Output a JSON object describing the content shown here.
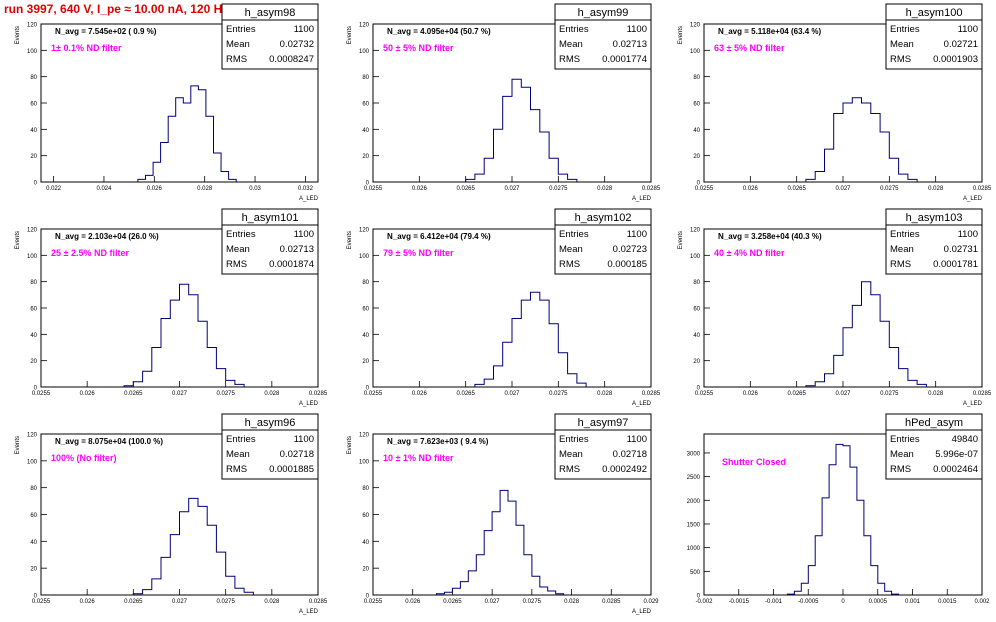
{
  "run_title": "run 3997,   640 V, I_pe ≈ 10.00 nA, 120 Hz",
  "colors": {
    "title": "#e00000",
    "annotation": "#ff00ff",
    "histogram": "#00007a",
    "axis": "#000000"
  },
  "chart_data": [
    {
      "type": "histogram",
      "name": "h_asym98",
      "navg": "N_avg = 7.545e+02 ( 0.9 %)",
      "filter": "1± 0.1% ND filter",
      "stats": {
        "entries_label": "Entries",
        "entries": "1100",
        "mean_label": "Mean",
        "mean": "0.02732",
        "rms_label": "RMS",
        "rms": "0.0008247"
      },
      "ylabel": "Events",
      "xlabel": "A_LED",
      "xlim": [
        0.0215,
        0.0325
      ],
      "ylim": [
        0,
        120
      ],
      "xticks": [
        "0.022",
        "0.024",
        "0.026",
        "0.028",
        "0.03",
        "0.032"
      ],
      "xtick_values": [
        0.022,
        0.024,
        0.026,
        0.028,
        0.03,
        0.032
      ],
      "yticks": [
        "0",
        "20",
        "40",
        "60",
        "80",
        "100",
        "120"
      ],
      "ytick_values": [
        0,
        20,
        40,
        60,
        80,
        100,
        120
      ],
      "centers": [
        0.0255,
        0.0258,
        0.0261,
        0.0264,
        0.0267,
        0.027,
        0.0273,
        0.0276,
        0.0279,
        0.0282,
        0.0285,
        0.0288,
        0.0291
      ],
      "values": [
        2,
        5,
        15,
        30,
        50,
        64,
        60,
        73,
        70,
        50,
        22,
        8,
        2
      ]
    },
    {
      "type": "histogram",
      "name": "h_asym99",
      "navg": "N_avg = 4.095e+04 (50.7 %)",
      "filter": "50 ± 5% ND filter",
      "stats": {
        "entries_label": "Entries",
        "entries": "1100",
        "mean_label": "Mean",
        "mean": "0.02713",
        "rms_label": "RMS",
        "rms": "0.0001774"
      },
      "ylabel": "Events",
      "xlabel": "A_LED",
      "xlim": [
        0.0255,
        0.0285
      ],
      "ylim": [
        0,
        120
      ],
      "xticks": [
        "0.0255",
        "0.026",
        "0.0265",
        "0.027",
        "0.0275",
        "0.028",
        "0.0285"
      ],
      "xtick_values": [
        0.0255,
        0.026,
        0.0265,
        0.027,
        0.0275,
        0.028,
        0.0285
      ],
      "yticks": [
        "0",
        "20",
        "40",
        "60",
        "80",
        "100",
        "120"
      ],
      "ytick_values": [
        0,
        20,
        40,
        60,
        80,
        100,
        120
      ],
      "centers": [
        0.02655,
        0.02665,
        0.02675,
        0.02685,
        0.02695,
        0.02705,
        0.02715,
        0.02725,
        0.02735,
        0.02745,
        0.02755,
        0.02765
      ],
      "values": [
        2,
        6,
        18,
        40,
        65,
        78,
        72,
        55,
        38,
        18,
        6,
        2
      ]
    },
    {
      "type": "histogram",
      "name": "h_asym100",
      "navg": "N_avg = 5.118e+04 (63.4 %)",
      "filter": "63 ± 5% ND filter",
      "stats": {
        "entries_label": "Entries",
        "entries": "1100",
        "mean_label": "Mean",
        "mean": "0.02721",
        "rms_label": "RMS",
        "rms": "0.0001903"
      },
      "ylabel": "Events",
      "xlabel": "A_LED",
      "xlim": [
        0.0255,
        0.0285
      ],
      "ylim": [
        0,
        120
      ],
      "xticks": [
        "0.0255",
        "0.026",
        "0.0265",
        "0.027",
        "0.0275",
        "0.028",
        "0.0285"
      ],
      "xtick_values": [
        0.0255,
        0.026,
        0.0265,
        0.027,
        0.0275,
        0.028,
        0.0285
      ],
      "yticks": [
        "0",
        "20",
        "40",
        "60",
        "80",
        "100",
        "120"
      ],
      "ytick_values": [
        0,
        20,
        40,
        60,
        80,
        100,
        120
      ],
      "centers": [
        0.02665,
        0.02675,
        0.02685,
        0.02695,
        0.02705,
        0.02715,
        0.02725,
        0.02735,
        0.02745,
        0.02755,
        0.02765,
        0.02775
      ],
      "values": [
        2,
        8,
        25,
        52,
        60,
        64,
        60,
        52,
        38,
        18,
        6,
        2
      ]
    },
    {
      "type": "histogram",
      "name": "h_asym101",
      "navg": "N_avg = 2.103e+04 (26.0 %)",
      "filter": "25 ± 2.5% ND filter",
      "stats": {
        "entries_label": "Entries",
        "entries": "1100",
        "mean_label": "Mean",
        "mean": "0.02713",
        "rms_label": "RMS",
        "rms": "0.0001874"
      },
      "ylabel": "Events",
      "xlabel": "A_LED",
      "xlim": [
        0.0255,
        0.0285
      ],
      "ylim": [
        0,
        120
      ],
      "xticks": [
        "0.0255",
        "0.026",
        "0.0265",
        "0.027",
        "0.0275",
        "0.028",
        "0.0285"
      ],
      "xtick_values": [
        0.0255,
        0.026,
        0.0265,
        0.027,
        0.0275,
        0.028,
        0.0285
      ],
      "yticks": [
        "0",
        "20",
        "40",
        "60",
        "80",
        "100",
        "120"
      ],
      "ytick_values": [
        0,
        20,
        40,
        60,
        80,
        100,
        120
      ],
      "centers": [
        0.02645,
        0.02655,
        0.02665,
        0.02675,
        0.02685,
        0.02695,
        0.02705,
        0.02715,
        0.02725,
        0.02735,
        0.02745,
        0.02755,
        0.02765
      ],
      "values": [
        1,
        4,
        12,
        30,
        52,
        66,
        78,
        70,
        50,
        30,
        14,
        5,
        2
      ]
    },
    {
      "type": "histogram",
      "name": "h_asym102",
      "navg": "N_avg = 6.412e+04 (79.4 %)",
      "filter": "79 ± 5% ND filter",
      "stats": {
        "entries_label": "Entries",
        "entries": "1100",
        "mean_label": "Mean",
        "mean": "0.02723",
        "rms_label": "RMS",
        "rms": "0.000185"
      },
      "ylabel": "Events",
      "xlabel": "A_LED",
      "xlim": [
        0.0255,
        0.0285
      ],
      "ylim": [
        0,
        120
      ],
      "xticks": [
        "0.0255",
        "0.026",
        "0.0265",
        "0.027",
        "0.0275",
        "0.028",
        "0.0285"
      ],
      "xtick_values": [
        0.0255,
        0.026,
        0.0265,
        0.027,
        0.0275,
        0.028,
        0.0285
      ],
      "yticks": [
        "0",
        "20",
        "40",
        "60",
        "80",
        "100",
        "120"
      ],
      "ytick_values": [
        0,
        20,
        40,
        60,
        80,
        100,
        120
      ],
      "centers": [
        0.02665,
        0.02675,
        0.02685,
        0.02695,
        0.02705,
        0.02715,
        0.02725,
        0.02735,
        0.02745,
        0.02755,
        0.02765,
        0.02775
      ],
      "values": [
        2,
        6,
        16,
        34,
        52,
        66,
        72,
        66,
        48,
        26,
        10,
        3
      ]
    },
    {
      "type": "histogram",
      "name": "h_asym103",
      "navg": "N_avg = 3.258e+04 (40.3 %)",
      "filter": "40 ± 4% ND filter",
      "stats": {
        "entries_label": "Entries",
        "entries": "1100",
        "mean_label": "Mean",
        "mean": "0.02731",
        "rms_label": "RMS",
        "rms": "0.0001781"
      },
      "ylabel": "Events",
      "xlabel": "A_LED",
      "xlim": [
        0.0255,
        0.0285
      ],
      "ylim": [
        0,
        120
      ],
      "xticks": [
        "0.0255",
        "0.026",
        "0.0265",
        "0.027",
        "0.0275",
        "0.028",
        "0.0285"
      ],
      "xtick_values": [
        0.0255,
        0.026,
        0.0265,
        0.027,
        0.0275,
        0.028,
        0.0285
      ],
      "yticks": [
        "0",
        "20",
        "40",
        "60",
        "80",
        "100",
        "120"
      ],
      "ytick_values": [
        0,
        20,
        40,
        60,
        80,
        100,
        120
      ],
      "centers": [
        0.02665,
        0.02675,
        0.02685,
        0.02695,
        0.02705,
        0.02715,
        0.02725,
        0.02735,
        0.02745,
        0.02755,
        0.02765,
        0.02775,
        0.02785
      ],
      "values": [
        1,
        4,
        10,
        24,
        45,
        62,
        80,
        70,
        50,
        30,
        14,
        5,
        2
      ]
    },
    {
      "type": "histogram",
      "name": "h_asym96",
      "navg": "N_avg = 8.075e+04 (100.0 %)",
      "filter": "100% (No filter)",
      "stats": {
        "entries_label": "Entries",
        "entries": "1100",
        "mean_label": "Mean",
        "mean": "0.02718",
        "rms_label": "RMS",
        "rms": "0.0001885"
      },
      "ylabel": "Events",
      "xlabel": "A_LED",
      "xlim": [
        0.0255,
        0.0285
      ],
      "ylim": [
        0,
        120
      ],
      "xticks": [
        "0.0255",
        "0.026",
        "0.0265",
        "0.027",
        "0.0275",
        "0.028",
        "0.0285"
      ],
      "xtick_values": [
        0.0255,
        0.026,
        0.0265,
        0.027,
        0.0275,
        0.028,
        0.0285
      ],
      "yticks": [
        "0",
        "20",
        "40",
        "60",
        "80",
        "100",
        "120"
      ],
      "ytick_values": [
        0,
        20,
        40,
        60,
        80,
        100,
        120
      ],
      "centers": [
        0.02655,
        0.02665,
        0.02675,
        0.02685,
        0.02695,
        0.02705,
        0.02715,
        0.02725,
        0.02735,
        0.02745,
        0.02755,
        0.02765,
        0.02775
      ],
      "values": [
        1,
        4,
        12,
        28,
        45,
        62,
        72,
        66,
        52,
        32,
        14,
        5,
        2
      ]
    },
    {
      "type": "histogram",
      "name": "h_asym97",
      "navg": "N_avg = 7.623e+03 ( 9.4 %)",
      "filter": "10 ± 1% ND filter",
      "stats": {
        "entries_label": "Entries",
        "entries": "1100",
        "mean_label": "Mean",
        "mean": "0.02718",
        "rms_label": "RMS",
        "rms": "0.0002492"
      },
      "ylabel": "Events",
      "xlabel": "A_LED",
      "xlim": [
        0.0255,
        0.029
      ],
      "ylim": [
        0,
        120
      ],
      "xticks": [
        "0.0255",
        "0.026",
        "0.0265",
        "0.027",
        "0.0275",
        "0.028",
        "0.0285",
        "0.029"
      ],
      "xtick_values": [
        0.0255,
        0.026,
        0.0265,
        0.027,
        0.0275,
        0.028,
        0.0285,
        0.029
      ],
      "yticks": [
        "0",
        "20",
        "40",
        "60",
        "80",
        "100",
        "120"
      ],
      "ytick_values": [
        0,
        20,
        40,
        60,
        80,
        100,
        120
      ],
      "centers": [
        0.02635,
        0.02645,
        0.02655,
        0.02665,
        0.02675,
        0.02685,
        0.02695,
        0.02705,
        0.02715,
        0.02725,
        0.02735,
        0.02745,
        0.02755,
        0.02765,
        0.02775,
        0.02785
      ],
      "values": [
        1,
        2,
        5,
        10,
        18,
        30,
        48,
        62,
        78,
        70,
        52,
        30,
        14,
        6,
        3,
        1
      ]
    },
    {
      "type": "histogram",
      "name": "hPed_asym",
      "navg": "",
      "filter": "Shutter Closed",
      "stats": {
        "entries_label": "Entries",
        "entries": "49840",
        "mean_label": "Mean",
        "mean": "5.996e-07",
        "rms_label": "RMS",
        "rms": "0.0002464"
      },
      "ylabel": "",
      "xlabel": "",
      "xlim": [
        -0.002,
        0.002
      ],
      "ylim": [
        0,
        3400
      ],
      "xticks": [
        "-0.002",
        "-0.0015",
        "-0.001",
        "-0.0005",
        "0",
        "0.0005",
        "0.001",
        "0.0015",
        "0.002"
      ],
      "xtick_values": [
        -0.002,
        -0.0015,
        -0.001,
        -0.0005,
        0,
        0.0005,
        0.001,
        0.0015,
        0.002
      ],
      "yticks": [
        "0",
        "500",
        "1000",
        "1500",
        "2000",
        "2500",
        "3000"
      ],
      "ytick_values": [
        0,
        500,
        1000,
        1500,
        2000,
        2500,
        3000
      ],
      "centers": [
        -0.00075,
        -0.00065,
        -0.00055,
        -0.00045,
        -0.00035,
        -0.00025,
        -0.00015,
        -5e-05,
        5e-05,
        0.00015,
        0.00025,
        0.00035,
        0.00045,
        0.00055,
        0.00065,
        0.00075
      ],
      "values": [
        20,
        80,
        250,
        620,
        1250,
        2050,
        2750,
        3180,
        3150,
        2700,
        2000,
        1250,
        620,
        250,
        80,
        20
      ]
    }
  ]
}
